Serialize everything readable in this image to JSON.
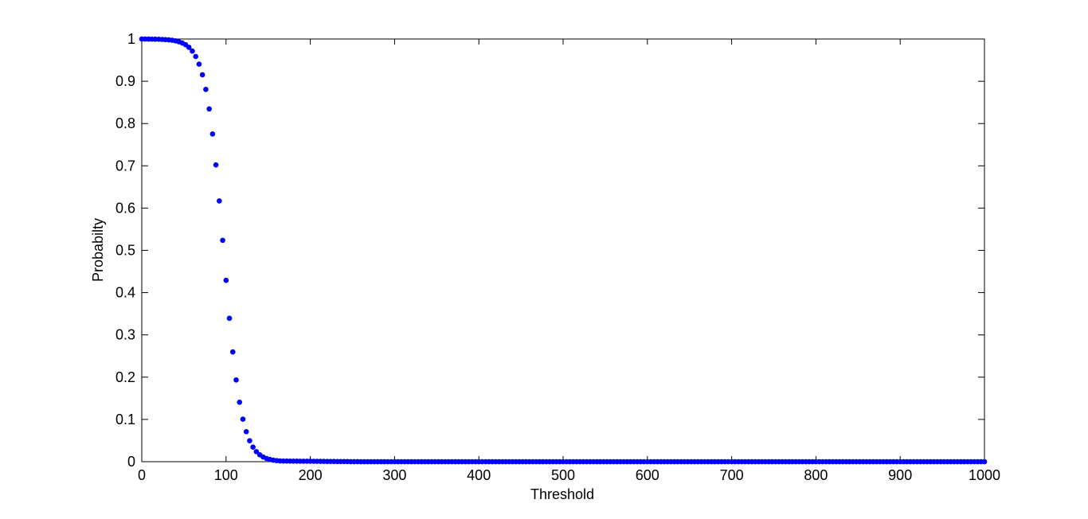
{
  "chart_data": {
    "type": "scatter",
    "title": "",
    "xlabel": "Threshold",
    "ylabel": "Probabilty",
    "xlim": [
      0,
      1000
    ],
    "ylim": [
      0,
      1
    ],
    "grid": false,
    "legend": "none",
    "marker_color": "#0000ff",
    "x_ticks": [
      "0",
      "100",
      "200",
      "300",
      "400",
      "500",
      "600",
      "700",
      "800",
      "900",
      "1000"
    ],
    "y_ticks": [
      "0",
      "0.1",
      "0.2",
      "0.3",
      "0.4",
      "0.5",
      "0.6",
      "0.7",
      "0.8",
      "0.9",
      "1"
    ],
    "series": [
      {
        "name": "Probability",
        "curve": "logistic",
        "x_start": 0,
        "x_end": 1000,
        "x_step": 4,
        "midpoint": 97,
        "scale": 10.5,
        "sample_points": [
          {
            "x": 0,
            "y": 1.0
          },
          {
            "x": 50,
            "y": 0.99
          },
          {
            "x": 70,
            "y": 0.93
          },
          {
            "x": 80,
            "y": 0.85
          },
          {
            "x": 90,
            "y": 0.7
          },
          {
            "x": 100,
            "y": 0.45
          },
          {
            "x": 110,
            "y": 0.25
          },
          {
            "x": 120,
            "y": 0.11
          },
          {
            "x": 130,
            "y": 0.04
          },
          {
            "x": 150,
            "y": 0.004
          },
          {
            "x": 200,
            "y": 0.002
          },
          {
            "x": 250,
            "y": 0.001
          },
          {
            "x": 300,
            "y": 0.0
          },
          {
            "x": 1000,
            "y": 0.0
          }
        ]
      }
    ]
  }
}
